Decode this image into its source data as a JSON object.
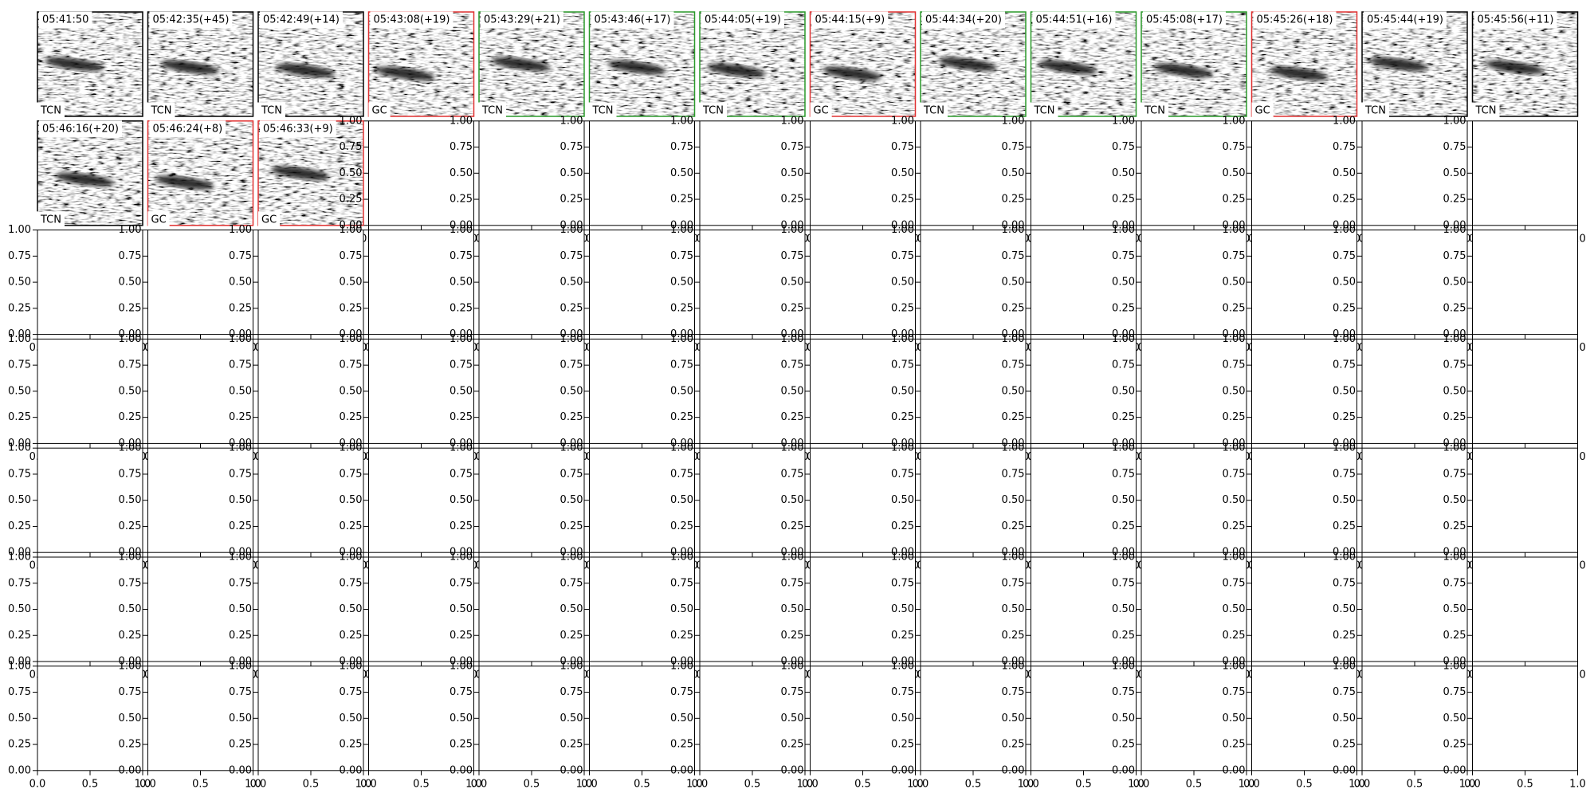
{
  "panels": [
    {
      "title": "05:41:50",
      "label": "TCN",
      "border": "#000000"
    },
    {
      "title": "05:42:35(+45)",
      "label": "TCN",
      "border": "#000000"
    },
    {
      "title": "05:42:49(+14)",
      "label": "TCN",
      "border": "#000000"
    },
    {
      "title": "05:43:08(+19)",
      "label": "GC",
      "border": "#e03030"
    },
    {
      "title": "05:43:29(+21)",
      "label": "TCN",
      "border": "#2a9a2a"
    },
    {
      "title": "05:43:46(+17)",
      "label": "TCN",
      "border": "#2a9a2a"
    },
    {
      "title": "05:44:05(+19)",
      "label": "TCN",
      "border": "#2a9a2a"
    },
    {
      "title": "05:44:15(+9)",
      "label": "GC",
      "border": "#e03030"
    },
    {
      "title": "05:44:34(+20)",
      "label": "TCN",
      "border": "#2a9a2a"
    },
    {
      "title": "05:44:51(+16)",
      "label": "TCN",
      "border": "#2a9a2a"
    },
    {
      "title": "05:45:08(+17)",
      "label": "TCN",
      "border": "#2a9a2a"
    },
    {
      "title": "05:45:26(+18)",
      "label": "GC",
      "border": "#e03030"
    },
    {
      "title": "05:45:44(+19)",
      "label": "TCN",
      "border": "#000000"
    },
    {
      "title": "05:45:56(+11)",
      "label": "TCN",
      "border": "#000000"
    },
    {
      "title": "05:46:16(+20)",
      "label": "TCN",
      "border": "#000000"
    },
    {
      "title": "05:46:24(+8)",
      "label": "GC",
      "border": "#e03030"
    },
    {
      "title": "05:46:33(+9)",
      "label": "GC",
      "border": "#e03030"
    }
  ],
  "axes": {
    "xlim": [
      0,
      1
    ],
    "ylim": [
      0,
      1
    ],
    "xticks": [
      {
        "value": 0,
        "label": "0.0"
      },
      {
        "value": 0.5,
        "label": "0.5"
      },
      {
        "value": 1,
        "label": "1.0"
      }
    ],
    "yticks": [
      {
        "value": 0,
        "label": "0.00"
      },
      {
        "value": 0.25,
        "label": "0.25"
      },
      {
        "value": 0.5,
        "label": "0.50"
      },
      {
        "value": 0.75,
        "label": "0.75"
      },
      {
        "value": 1,
        "label": "1.00"
      }
    ]
  }
}
